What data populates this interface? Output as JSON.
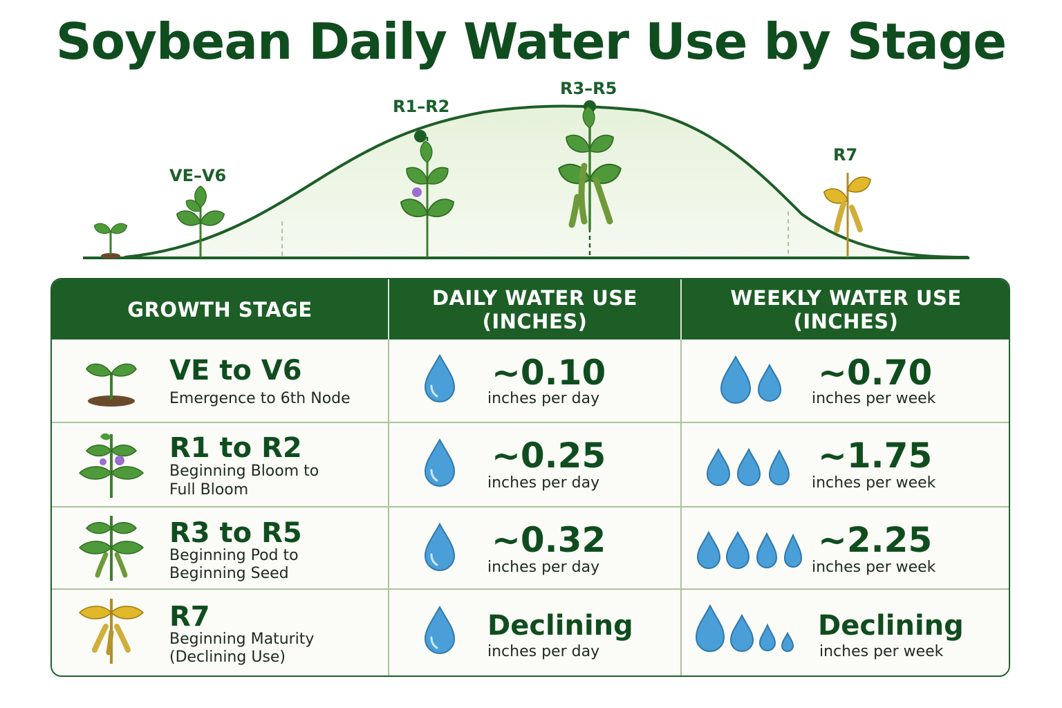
{
  "title": "Soybean Daily Water Use by Stage",
  "curve": {
    "labels": [
      "VE–V6",
      "R1–R2",
      "R3–R5",
      "R7"
    ]
  },
  "colors": {
    "dark_green": "#1d5e27",
    "header_text": "#ffffff",
    "water": "#4a9fd8",
    "leaf": "#4e9a3a",
    "mature_leaf": "#e0b82a"
  },
  "table": {
    "headers": {
      "stage": "GROWTH STAGE",
      "daily_line1": "DAILY WATER USE",
      "daily_line2": "(INCHES)",
      "weekly_line1": "WEEKLY WATER USE",
      "weekly_line2": "(INCHES)"
    },
    "rows": [
      {
        "stage": "VE to V6",
        "desc1": "Emergence to 6th Node",
        "desc2": "",
        "daily": "~0.10",
        "daily_unit": "inches per day",
        "weekly": "~0.70",
        "weekly_unit": "inches per week",
        "icon": "seedling-icon"
      },
      {
        "stage": "R1 to R2",
        "desc1": "Beginning Bloom to",
        "desc2": "Full Bloom",
        "daily": "~0.25",
        "daily_unit": "inches per day",
        "weekly": "~1.75",
        "weekly_unit": "inches per week",
        "icon": "flowering-plant-icon"
      },
      {
        "stage": "R3 to R5",
        "desc1": "Beginning Pod to",
        "desc2": "Beginning Seed",
        "daily": "~0.32",
        "daily_unit": "inches per day",
        "weekly": "~2.25",
        "weekly_unit": "inches per week",
        "icon": "pod-plant-icon"
      },
      {
        "stage": "R7",
        "desc1": "Beginning Maturity",
        "desc2": "(Declining Use)",
        "daily": "Declining",
        "daily_unit": "inches per day",
        "weekly": "Declining",
        "weekly_unit": "inches per week",
        "icon": "mature-plant-icon"
      }
    ]
  }
}
